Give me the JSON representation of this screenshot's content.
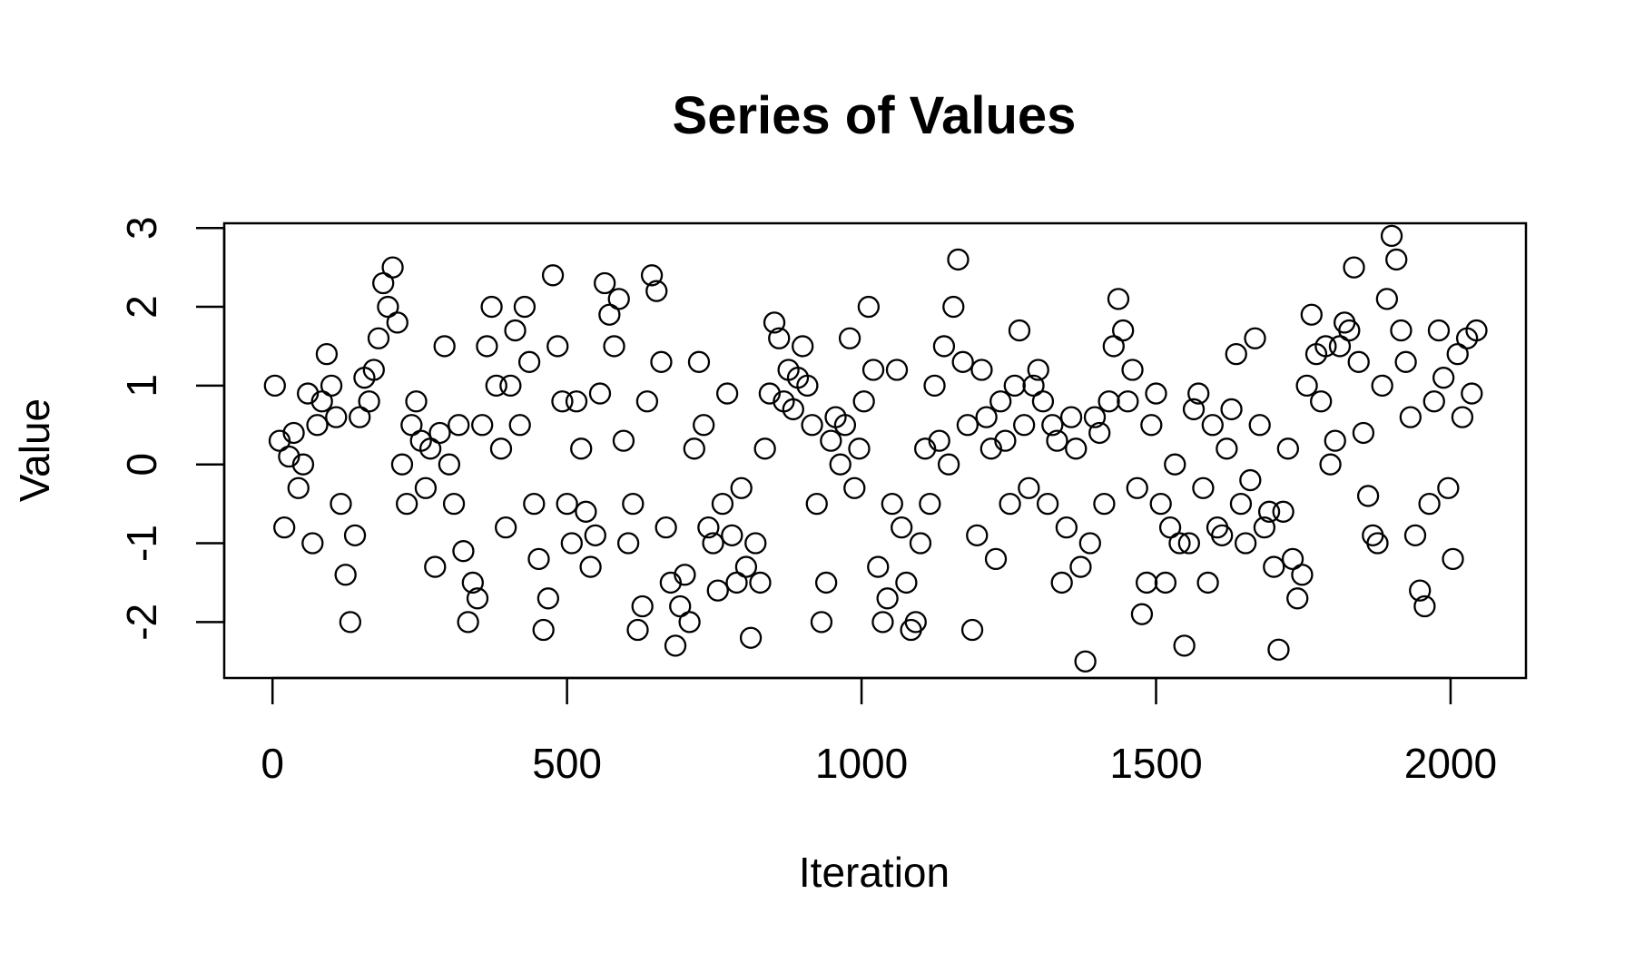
{
  "chart_data": {
    "type": "scatter",
    "title": "Series of Values",
    "xlabel": "Iteration",
    "ylabel": "Value",
    "xlim": [
      -82,
      2128
    ],
    "ylim": [
      -2.71,
      3.06
    ],
    "x_ticks": [
      "0",
      "500",
      "1000",
      "1500",
      "2000"
    ],
    "y_ticks": [
      "-2",
      "-1",
      "0",
      "1",
      "2",
      "3"
    ],
    "grid": false,
    "marker": "open-circle",
    "marker_color": "#000000",
    "x": [
      4,
      12,
      20,
      28,
      36,
      44,
      52,
      60,
      68,
      76,
      84,
      92,
      100,
      108,
      116,
      124,
      132,
      140,
      148,
      156,
      164,
      172,
      180,
      188,
      196,
      204,
      212,
      220,
      228,
      236,
      244,
      252,
      260,
      268,
      276,
      284,
      292,
      300,
      308,
      316,
      324,
      332,
      340,
      348,
      356,
      364,
      372,
      380,
      388,
      396,
      404,
      412,
      420,
      428,
      436,
      444,
      452,
      460,
      468,
      476,
      484,
      492,
      500,
      508,
      516,
      524,
      532,
      540,
      548,
      556,
      564,
      572,
      580,
      588,
      596,
      604,
      612,
      620,
      628,
      636,
      644,
      652,
      660,
      668,
      676,
      684,
      692,
      700,
      708,
      716,
      724,
      732,
      740,
      748,
      756,
      764,
      772,
      780,
      788,
      796,
      804,
      812,
      820,
      828,
      836,
      844,
      852,
      860,
      868,
      876,
      884,
      892,
      900,
      908,
      916,
      924,
      932,
      940,
      948,
      956,
      964,
      972,
      980,
      988,
      996,
      1004,
      1012,
      1020,
      1028,
      1036,
      1044,
      1052,
      1060,
      1068,
      1076,
      1084,
      1092,
      1100,
      1108,
      1116,
      1124,
      1132,
      1140,
      1148,
      1156,
      1164,
      1172,
      1180,
      1188,
      1196,
      1204,
      1212,
      1220,
      1228,
      1236,
      1244,
      1252,
      1260,
      1268,
      1276,
      1284,
      1292,
      1300,
      1308,
      1316,
      1324,
      1332,
      1340,
      1348,
      1356,
      1364,
      1372,
      1380,
      1388,
      1396,
      1404,
      1412,
      1420,
      1428,
      1436,
      1444,
      1452,
      1460,
      1468,
      1476,
      1484,
      1492,
      1500,
      1508,
      1516,
      1524,
      1532,
      1540,
      1548,
      1556,
      1564,
      1572,
      1580,
      1588,
      1596,
      1604,
      1612,
      1620,
      1628,
      1636,
      1644,
      1652,
      1660,
      1668,
      1676,
      1684,
      1692,
      1700,
      1708,
      1716,
      1724,
      1732,
      1740,
      1748,
      1756,
      1764,
      1772,
      1780,
      1788,
      1796,
      1804,
      1812,
      1820,
      1828,
      1836,
      1844,
      1852,
      1860,
      1868,
      1876,
      1884,
      1892,
      1900,
      1908,
      1916,
      1924,
      1932,
      1940,
      1948,
      1956,
      1964,
      1972,
      1980,
      1988,
      1996,
      2004,
      2012,
      2020,
      2028,
      2036,
      2044
    ],
    "y": [
      1.0,
      0.3,
      -0.8,
      0.1,
      0.4,
      -0.3,
      0.0,
      0.9,
      -1.0,
      0.5,
      0.8,
      1.4,
      1.0,
      0.6,
      -0.5,
      -1.4,
      -2.0,
      -0.9,
      0.6,
      1.1,
      0.8,
      1.2,
      1.6,
      2.3,
      2.0,
      2.5,
      1.8,
      0.0,
      -0.5,
      0.5,
      0.8,
      0.3,
      -0.3,
      0.2,
      -1.3,
      0.4,
      1.5,
      0.0,
      -0.5,
      0.5,
      -1.1,
      -2.0,
      -1.5,
      -1.7,
      0.5,
      1.5,
      2.0,
      1.0,
      0.2,
      -0.8,
      1.0,
      1.7,
      0.5,
      2.0,
      1.3,
      -0.5,
      -1.2,
      -2.1,
      -1.7,
      2.4,
      1.5,
      0.8,
      -0.5,
      -1.0,
      0.8,
      0.2,
      -0.6,
      -1.3,
      -0.9,
      0.9,
      2.3,
      1.9,
      1.5,
      2.1,
      0.3,
      -1.0,
      -0.5,
      -2.1,
      -1.8,
      0.8,
      2.4,
      2.2,
      1.3,
      -0.8,
      -1.5,
      -2.3,
      -1.8,
      -1.4,
      -2.0,
      0.2,
      1.3,
      0.5,
      -0.8,
      -1.0,
      -1.6,
      -0.5,
      0.9,
      -0.9,
      -1.5,
      -0.3,
      -1.3,
      -2.2,
      -1.0,
      -1.5,
      0.2,
      0.9,
      1.8,
      1.6,
      0.8,
      1.2,
      0.7,
      1.1,
      1.5,
      1.0,
      0.5,
      -0.5,
      -2.0,
      -1.5,
      0.3,
      0.6,
      0.0,
      0.5,
      1.6,
      -0.3,
      0.2,
      0.8,
      2.0,
      1.2,
      -1.3,
      -2.0,
      -1.7,
      -0.5,
      1.2,
      -0.8,
      -1.5,
      -2.1,
      -2.0,
      -1.0,
      0.2,
      -0.5,
      1.0,
      0.3,
      1.5,
      0.0,
      2.0,
      2.6,
      1.3,
      0.5,
      -2.1,
      -0.9,
      1.2,
      0.6,
      0.2,
      -1.2,
      0.8,
      0.3,
      -0.5,
      1.0,
      1.7,
      0.5,
      -0.3,
      1.0,
      1.2,
      0.8,
      -0.5,
      0.5,
      0.3,
      -1.5,
      -0.8,
      0.6,
      0.2,
      -1.3,
      -2.5,
      -1.0,
      0.6,
      0.4,
      -0.5,
      0.8,
      1.5,
      2.1,
      1.7,
      0.8,
      1.2,
      -0.3,
      -1.9,
      -1.5,
      0.5,
      0.9,
      -0.5,
      -1.5,
      -0.8,
      0.0,
      -1.0,
      -2.3,
      -1.0,
      0.7,
      0.9,
      -0.3,
      -1.5,
      0.5,
      -0.8,
      -0.9,
      0.2,
      0.7,
      1.4,
      -0.5,
      -1.0,
      -0.2,
      1.6,
      0.5,
      -0.8,
      -0.6,
      -1.3,
      -2.35,
      -0.6,
      0.2,
      -1.2,
      -1.7,
      -1.4,
      1.0,
      1.9,
      1.4,
      0.8,
      1.5,
      0.0,
      0.3,
      1.5,
      1.8,
      1.7,
      2.5,
      1.3,
      0.4,
      -0.4,
      -0.9,
      -1.0,
      1.0,
      2.1,
      2.9,
      2.6,
      1.7,
      1.3,
      0.6,
      -0.9,
      -1.6,
      -1.8,
      -0.5,
      0.8,
      1.7,
      1.1,
      -0.3,
      -1.2,
      1.4,
      0.6,
      1.6,
      0.9,
      1.7
    ]
  }
}
